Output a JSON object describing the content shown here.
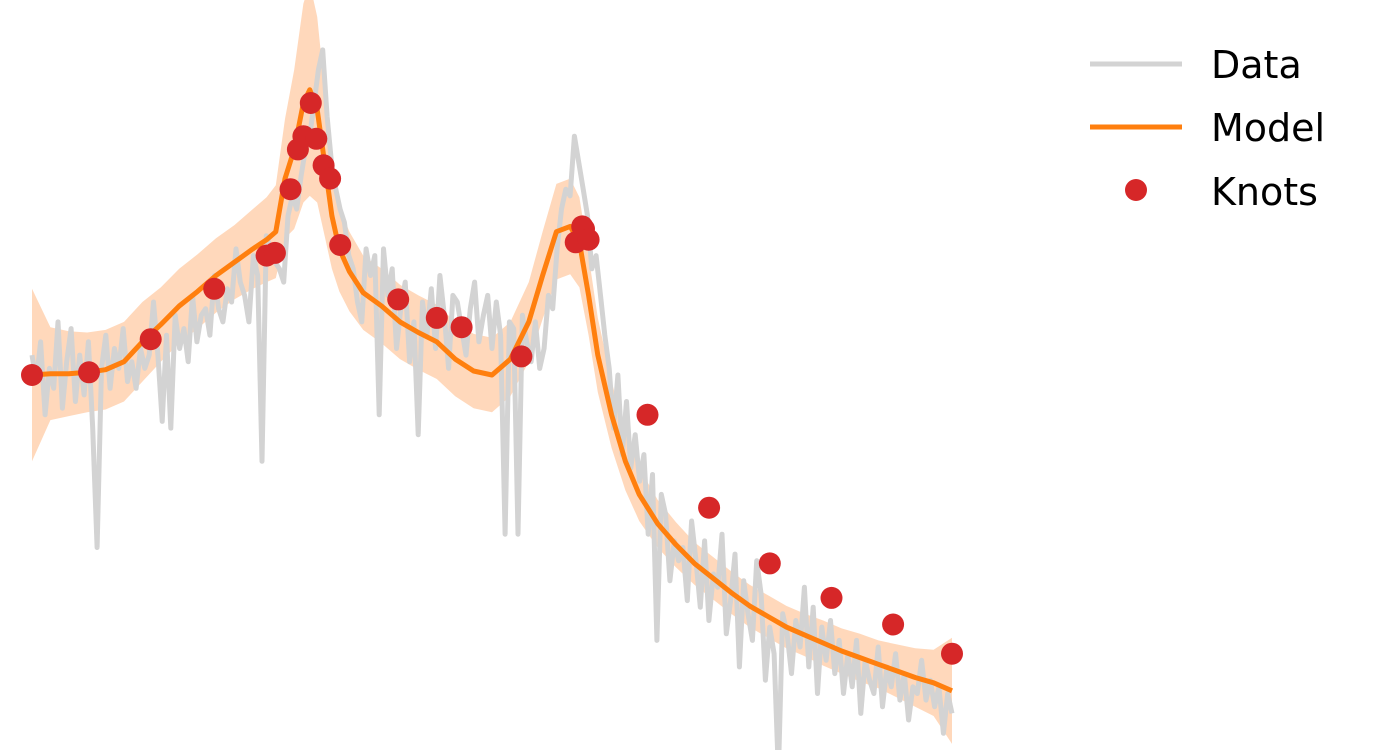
{
  "colors": {
    "data": "#d3d3d3",
    "model": "#ff7f0e",
    "band": "#ffc89e",
    "knots": "#d62728"
  },
  "legend": {
    "placement": "top-right",
    "items": [
      {
        "label": "Data",
        "kind": "line",
        "color": "#d3d3d3"
      },
      {
        "label": "Model",
        "kind": "line",
        "color": "#ff7f0e"
      },
      {
        "label": "Knots",
        "kind": "marker",
        "color": "#d62728"
      }
    ]
  },
  "chart_data": {
    "type": "line",
    "axes_visible": false,
    "grid": false,
    "xlim": [
      0,
      1
    ],
    "ylim": [
      -2.6,
      2.6
    ],
    "series": [
      {
        "name": "Data",
        "role": "noisy-observation",
        "x": [
          0.0,
          0.0047,
          0.0094,
          0.0142,
          0.0189,
          0.0236,
          0.0283,
          0.033,
          0.0377,
          0.0425,
          0.0472,
          0.0519,
          0.0566,
          0.0613,
          0.066,
          0.0708,
          0.0755,
          0.0802,
          0.0849,
          0.0896,
          0.0943,
          0.0991,
          0.1038,
          0.1085,
          0.1132,
          0.1179,
          0.1226,
          0.1274,
          0.1321,
          0.1368,
          0.1415,
          0.1462,
          0.1509,
          0.1557,
          0.1604,
          0.1651,
          0.1698,
          0.1745,
          0.1792,
          0.184,
          0.1887,
          0.1934,
          0.1981,
          0.2028,
          0.2075,
          0.2123,
          0.217,
          0.2217,
          0.2264,
          0.2311,
          0.2358,
          0.2406,
          0.2453,
          0.25,
          0.2547,
          0.2594,
          0.2641,
          0.2689,
          0.2736,
          0.2783,
          0.283,
          0.2877,
          0.2925,
          0.2972,
          0.3019,
          0.3066,
          0.3113,
          0.316,
          0.3208,
          0.3255,
          0.3302,
          0.3349,
          0.3396,
          0.3443,
          0.3491,
          0.3538,
          0.3585,
          0.3632,
          0.3679,
          0.3726,
          0.3774,
          0.3821,
          0.3868,
          0.3915,
          0.3962,
          0.4009,
          0.4057,
          0.4104,
          0.4151,
          0.4198,
          0.4245,
          0.4292,
          0.434,
          0.4387,
          0.4434,
          0.4481,
          0.4528,
          0.4575,
          0.4623,
          0.467,
          0.4717,
          0.4764,
          0.4811,
          0.4858,
          0.4906,
          0.4953,
          0.5,
          0.5047,
          0.5094,
          0.5142,
          0.5189,
          0.5236,
          0.5283,
          0.533,
          0.5377,
          0.5425,
          0.5472,
          0.5519,
          0.5566,
          0.5613,
          0.566,
          0.5708,
          0.5755,
          0.5802,
          0.5849,
          0.5896,
          0.5943,
          0.5991,
          0.6038,
          0.6085,
          0.6132,
          0.6179,
          0.6226,
          0.6274,
          0.6321,
          0.6368,
          0.6415,
          0.6462,
          0.6509,
          0.6557,
          0.6604,
          0.6651,
          0.6698,
          0.6745,
          0.6792,
          0.684,
          0.6887,
          0.6934,
          0.6981,
          0.7028,
          0.7075,
          0.7123,
          0.717,
          0.7217,
          0.7264,
          0.7311,
          0.7358,
          0.7406,
          0.7453,
          0.75,
          0.7547,
          0.7594,
          0.7641,
          0.7689,
          0.7736,
          0.7783,
          0.783,
          0.7877,
          0.7925,
          0.7972,
          0.8019,
          0.8066,
          0.8113,
          0.816,
          0.8208,
          0.8255,
          0.8302,
          0.8349,
          0.8396,
          0.8443,
          0.8491,
          0.8538,
          0.8585,
          0.8632,
          0.8679,
          0.8726,
          0.8774,
          0.8821,
          0.8868,
          0.8915,
          0.8962,
          0.9009,
          0.9057,
          0.9104,
          0.9151,
          0.9198,
          0.9245,
          0.9292,
          0.934,
          0.9387,
          0.9434,
          0.9481,
          0.9528,
          0.9575,
          0.9623,
          0.967,
          0.9717,
          0.9764,
          0.9811,
          0.9858,
          0.9906,
          0.9953,
          1.0
        ],
        "y": [
          0.15,
          -0.05,
          0.25,
          -0.3,
          0.05,
          -0.1,
          0.4,
          -0.25,
          0.1,
          0.35,
          -0.2,
          0.15,
          -0.15,
          0.25,
          -0.4,
          -1.3,
          0.05,
          0.3,
          -0.1,
          0.2,
          0.05,
          0.35,
          -0.05,
          0.1,
          -0.1,
          0.2,
          0.05,
          0.15,
          0.55,
          0.15,
          -0.35,
          0.3,
          -0.4,
          0.45,
          0.2,
          0.35,
          0.1,
          0.6,
          0.25,
          0.45,
          0.5,
          0.3,
          0.75,
          0.5,
          0.4,
          0.65,
          0.55,
          0.95,
          0.7,
          0.6,
          0.4,
          0.9,
          0.75,
          -0.65,
          1.05,
          0.95,
          0.85,
          0.8,
          0.7,
          1.2,
          1.35,
          1.25,
          1.5,
          1.7,
          1.8,
          2.05,
          2.3,
          2.45,
          1.95,
          1.6,
          1.4,
          1.25,
          1.15,
          0.9,
          0.8,
          0.55,
          0.4,
          0.95,
          0.75,
          0.9,
          -0.3,
          0.95,
          0.6,
          0.8,
          0.2,
          0.5,
          0.7,
          0.1,
          0.4,
          -0.45,
          0.55,
          0.3,
          0.65,
          0.2,
          0.75,
          0.45,
          0.05,
          0.6,
          0.55,
          0.35,
          0.15,
          0.5,
          0.7,
          0.25,
          0.45,
          0.6,
          0.2,
          0.55,
          0.3,
          -1.2,
          0.4,
          0.35,
          -1.2,
          0.45,
          0.25,
          0.1,
          0.4,
          0.05,
          0.2,
          0.6,
          0.5,
          0.95,
          1.25,
          1.4,
          1.35,
          1.8,
          1.6,
          1.4,
          1.2,
          0.8,
          0.9,
          0.6,
          0.3,
          0.05,
          -0.4,
          0.0,
          -0.6,
          -0.2,
          -0.7,
          -0.45,
          -0.8,
          -0.6,
          -1.2,
          -0.75,
          -2.0,
          -0.9,
          -1.05,
          -1.55,
          -1.25,
          -1.4,
          -1.3,
          -1.7,
          -1.1,
          -1.4,
          -1.75,
          -1.25,
          -1.85,
          -1.5,
          -1.6,
          -1.2,
          -1.95,
          -1.7,
          -1.35,
          -2.2,
          -1.55,
          -1.8,
          -2.0,
          -1.4,
          -1.65,
          -2.3,
          -1.9,
          -2.1,
          -3.0,
          -1.8,
          -1.95,
          -2.25,
          -1.85,
          -2.05,
          -1.6,
          -2.2,
          -1.75,
          -2.4,
          -1.9,
          -2.15,
          -1.85,
          -2.25,
          -2.0,
          -2.4,
          -2.1,
          -2.35,
          -2.0,
          -2.55,
          -2.15,
          -2.3,
          -2.4,
          -2.05,
          -2.5,
          -2.2,
          -2.35,
          -2.1,
          -2.45,
          -2.25,
          -2.6,
          -2.35,
          -2.4,
          -2.15,
          -2.45,
          -2.3,
          -2.5,
          -2.35,
          -2.7,
          -2.4,
          -2.55
        ]
      },
      {
        "name": "Model",
        "role": "fit",
        "x": [
          0.0,
          0.02,
          0.04,
          0.06,
          0.08,
          0.1,
          0.12,
          0.14,
          0.16,
          0.18,
          0.2,
          0.22,
          0.24,
          0.255,
          0.265,
          0.275,
          0.285,
          0.295,
          0.302,
          0.31,
          0.318,
          0.326,
          0.334,
          0.345,
          0.36,
          0.38,
          0.4,
          0.42,
          0.44,
          0.46,
          0.48,
          0.5,
          0.52,
          0.54,
          0.555,
          0.57,
          0.585,
          0.595,
          0.605,
          0.615,
          0.63,
          0.645,
          0.66,
          0.68,
          0.7,
          0.72,
          0.74,
          0.76,
          0.78,
          0.8,
          0.82,
          0.84,
          0.86,
          0.88,
          0.9,
          0.92,
          0.94,
          0.96,
          0.98,
          1.0
        ],
        "y": [
          0.0,
          0.01,
          0.01,
          0.02,
          0.04,
          0.1,
          0.25,
          0.38,
          0.52,
          0.63,
          0.75,
          0.85,
          0.95,
          1.02,
          1.08,
          1.48,
          1.7,
          2.05,
          2.15,
          2.0,
          1.6,
          1.2,
          0.95,
          0.78,
          0.62,
          0.52,
          0.4,
          0.32,
          0.25,
          0.12,
          0.03,
          0.0,
          0.12,
          0.4,
          0.75,
          1.08,
          1.12,
          1.0,
          0.6,
          0.15,
          -0.3,
          -0.65,
          -0.9,
          -1.12,
          -1.28,
          -1.42,
          -1.53,
          -1.64,
          -1.74,
          -1.82,
          -1.9,
          -1.96,
          -2.02,
          -2.08,
          -2.13,
          -2.18,
          -2.23,
          -2.28,
          -2.32,
          -2.38
        ],
        "band_halfwidth": [
          0.65,
          0.35,
          0.32,
          0.3,
          0.3,
          0.3,
          0.3,
          0.28,
          0.28,
          0.28,
          0.28,
          0.28,
          0.3,
          0.32,
          0.35,
          0.45,
          0.6,
          0.75,
          0.8,
          0.7,
          0.55,
          0.4,
          0.32,
          0.3,
          0.28,
          0.28,
          0.28,
          0.28,
          0.28,
          0.28,
          0.28,
          0.28,
          0.28,
          0.3,
          0.33,
          0.36,
          0.36,
          0.34,
          0.3,
          0.28,
          0.25,
          0.22,
          0.2,
          0.18,
          0.17,
          0.16,
          0.16,
          0.16,
          0.16,
          0.16,
          0.16,
          0.16,
          0.17,
          0.17,
          0.18,
          0.18,
          0.2,
          0.22,
          0.25,
          0.4
        ]
      },
      {
        "name": "Knots",
        "role": "markers",
        "x": [
          0.0,
          0.062,
          0.129,
          0.198,
          0.255,
          0.264,
          0.281,
          0.289,
          0.295,
          0.303,
          0.309,
          0.317,
          0.324,
          0.335,
          0.398,
          0.44,
          0.467,
          0.532,
          0.591,
          0.598,
          0.6,
          0.605,
          0.669,
          0.736,
          0.802,
          0.869,
          0.936,
          1.0
        ],
        "y": [
          0.0,
          0.02,
          0.27,
          0.65,
          0.9,
          0.92,
          1.4,
          1.7,
          1.8,
          2.05,
          1.78,
          1.58,
          1.48,
          0.98,
          0.57,
          0.43,
          0.36,
          0.14,
          1.0,
          1.12,
          1.1,
          1.02,
          -0.3,
          -1.0,
          -1.42,
          -1.68,
          -1.88,
          -2.1
        ]
      }
    ]
  }
}
